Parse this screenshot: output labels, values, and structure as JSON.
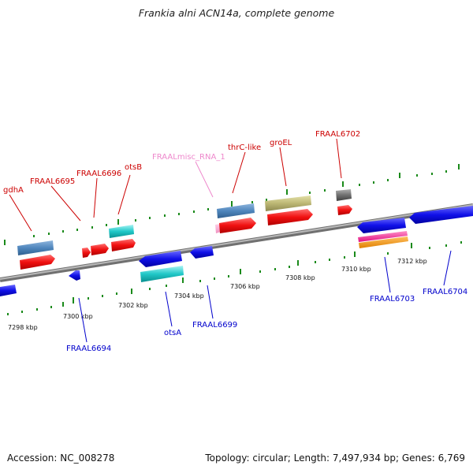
{
  "title": "Frankia alni ACN14a, complete genome",
  "footer": {
    "accession": "Accession: NC_008278",
    "summary": "Topology: circular; Length: 7,497,934 bp; Genes: 6,769"
  },
  "colors": {
    "forward_label": "#cc0000",
    "reverse_label": "#0000cc",
    "rna_label": "#ee88cc",
    "backbone": "#888888",
    "tick": "#1a8a1a"
  },
  "tick_labels": [
    "7298 kbp",
    "7300 kbp",
    "7302 kbp",
    "7304 kbp",
    "7306 kbp",
    "7308 kbp",
    "7310 kbp",
    "7312 kbp"
  ],
  "forward_labels": [
    "gdhA",
    "FRAAL6695",
    "FRAAL6696",
    "otsB",
    "FRAALmisc_RNA_1",
    "thrC-like",
    "groEL",
    "FRAAL6702"
  ],
  "reverse_labels": [
    "FRAAL6694",
    "otsA",
    "FRAAL6699",
    "FRAAL6703",
    "FRAAL6704"
  ]
}
